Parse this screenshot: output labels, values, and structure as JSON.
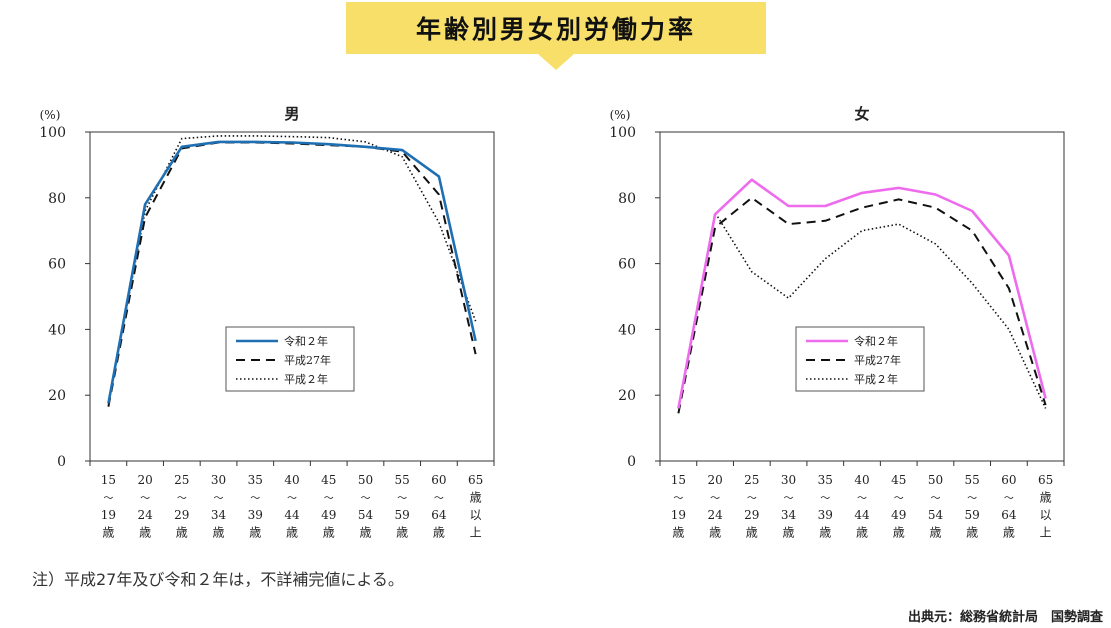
{
  "header": {
    "title": "年齢別男女別労働力率"
  },
  "note": "注）平成27年及び令和２年は，不詳補完値による。",
  "source": "出典元：総務省統計局　国勢調査",
  "chart_data": [
    {
      "type": "line",
      "title": "男",
      "ylabel": "(%)",
      "ylim": [
        0,
        100
      ],
      "yticks": [
        0,
        20,
        40,
        60,
        80,
        100
      ],
      "categories": [
        [
          "15",
          "〜",
          "19",
          "歳"
        ],
        [
          "20",
          "〜",
          "24",
          "歳"
        ],
        [
          "25",
          "〜",
          "29",
          "歳"
        ],
        [
          "30",
          "〜",
          "34",
          "歳"
        ],
        [
          "35",
          "〜",
          "39",
          "歳"
        ],
        [
          "40",
          "〜",
          "44",
          "歳"
        ],
        [
          "45",
          "〜",
          "49",
          "歳"
        ],
        [
          "50",
          "〜",
          "54",
          "歳"
        ],
        [
          "55",
          "〜",
          "59",
          "歳"
        ],
        [
          "60",
          "〜",
          "64",
          "歳"
        ],
        [
          "65",
          "歳",
          "以",
          "上"
        ]
      ],
      "legend_position": "center-bottom",
      "series": [
        {
          "name": "令和２年",
          "style": "solid",
          "color": "#1f6fb2",
          "values": [
            17.5,
            78,
            95.5,
            97,
            97,
            96.8,
            96.3,
            95.5,
            94.5,
            86.5,
            36.5
          ]
        },
        {
          "name": "平成27年",
          "style": "dashed",
          "color": "#111111",
          "values": [
            16.5,
            74,
            95,
            96.8,
            96.8,
            96.5,
            96,
            95.5,
            94,
            81,
            32.5
          ]
        },
        {
          "name": "平成２年",
          "style": "dotted",
          "color": "#111111",
          "values": [
            17.5,
            76,
            98,
            98.8,
            98.8,
            98.6,
            98.3,
            97,
            92.5,
            72.5,
            42.5
          ]
        }
      ]
    },
    {
      "type": "line",
      "title": "女",
      "ylabel": "(%)",
      "ylim": [
        0,
        100
      ],
      "yticks": [
        0,
        20,
        40,
        60,
        80,
        100
      ],
      "categories": [
        [
          "15",
          "〜",
          "19",
          "歳"
        ],
        [
          "20",
          "〜",
          "24",
          "歳"
        ],
        [
          "25",
          "〜",
          "29",
          "歳"
        ],
        [
          "30",
          "〜",
          "34",
          "歳"
        ],
        [
          "35",
          "〜",
          "39",
          "歳"
        ],
        [
          "40",
          "〜",
          "44",
          "歳"
        ],
        [
          "45",
          "〜",
          "49",
          "歳"
        ],
        [
          "50",
          "〜",
          "54",
          "歳"
        ],
        [
          "55",
          "〜",
          "59",
          "歳"
        ],
        [
          "60",
          "〜",
          "64",
          "歳"
        ],
        [
          "65",
          "歳",
          "以",
          "上"
        ]
      ],
      "legend_position": "center-bottom",
      "series": [
        {
          "name": "令和２年",
          "style": "solid",
          "color": "#ee6bee",
          "values": [
            16,
            75,
            85.5,
            77.5,
            77.5,
            81.5,
            83,
            81,
            76,
            62.5,
            19
          ]
        },
        {
          "name": "平成27年",
          "style": "dashed",
          "color": "#111111",
          "values": [
            14.5,
            71,
            80,
            72,
            73,
            77,
            79.5,
            77,
            70,
            52.5,
            17
          ]
        },
        {
          "name": "平成２年",
          "style": "dotted",
          "color": "#111111",
          "values": [
            16,
            75.5,
            57.5,
            49.5,
            61.5,
            70,
            72,
            66,
            54,
            40,
            16
          ]
        }
      ]
    }
  ]
}
